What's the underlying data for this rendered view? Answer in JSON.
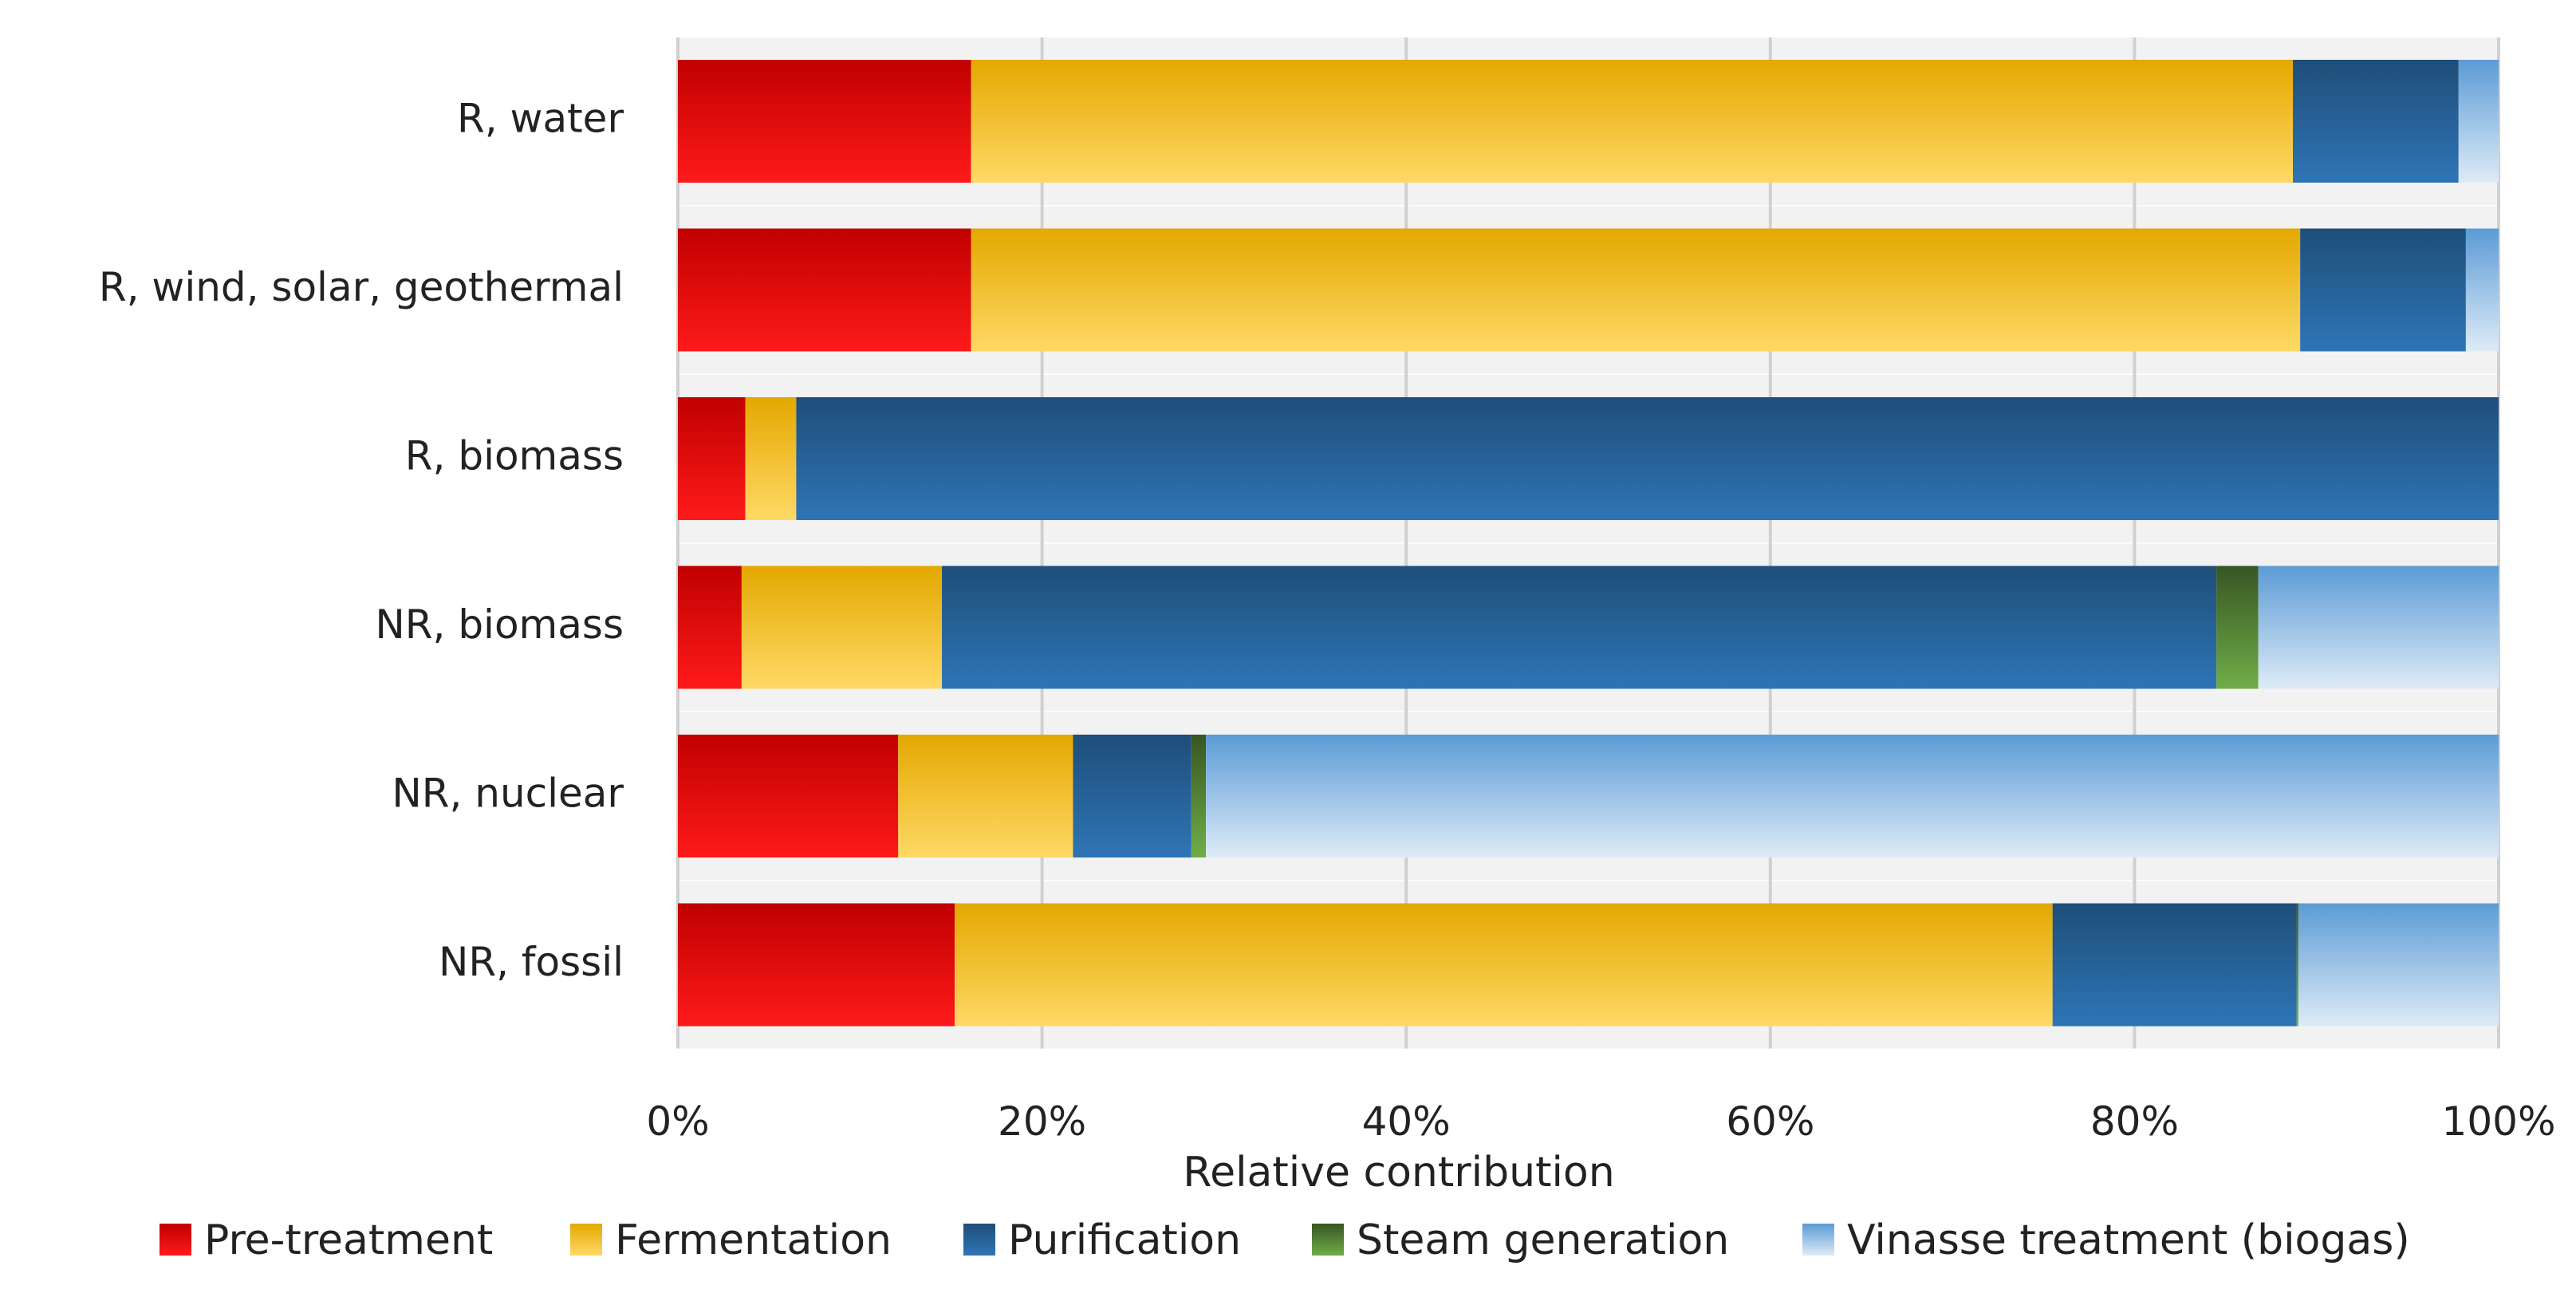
{
  "chart_data": {
    "type": "bar",
    "orientation": "horizontal",
    "stacked": true,
    "categories": [
      "R, water",
      "R, wind, solar, geothermal",
      "R, biomass",
      "NR, biomass",
      "NR, nuclear",
      "NR, fossil"
    ],
    "series": [
      {
        "name": "Pre-treatment",
        "values": [
          16.1,
          16.1,
          3.7,
          3.5,
          12.1,
          15.2
        ]
      },
      {
        "name": "Fermentation",
        "values": [
          72.6,
          73.0,
          2.8,
          11.0,
          9.6,
          60.3
        ]
      },
      {
        "name": "Purification",
        "values": [
          9.1,
          9.1,
          93.5,
          70.0,
          6.5,
          13.4
        ]
      },
      {
        "name": "Steam generation",
        "values": [
          0.0,
          0.0,
          0.0,
          2.3,
          0.8,
          0.1
        ]
      },
      {
        "name": "Vinasse treatment (biogas)",
        "values": [
          2.2,
          1.8,
          0.0,
          13.2,
          71.0,
          11.0
        ]
      }
    ],
    "xlabel": "Relative contribution",
    "xlim": [
      0,
      100
    ],
    "xticks": [
      "0%",
      "20%",
      "40%",
      "60%",
      "80%",
      "100%"
    ],
    "xtick_values": [
      0,
      20,
      40,
      60,
      80,
      100
    ],
    "grid": true,
    "legend_position": "bottom",
    "colors": {
      "Pre-treatment": [
        "#c00000",
        "#ff1a1a"
      ],
      "Fermentation": [
        "#e3a800",
        "#ffd966"
      ],
      "Purification": [
        "#1f4e79",
        "#2e75b6"
      ],
      "Steam generation": [
        "#375623",
        "#70ad47"
      ],
      "Vinasse treatment (biogas)": [
        "#5b9bd5",
        "#deebf7"
      ]
    },
    "band_color": "#f2f2f2",
    "grid_color": "#d0d0d0"
  }
}
